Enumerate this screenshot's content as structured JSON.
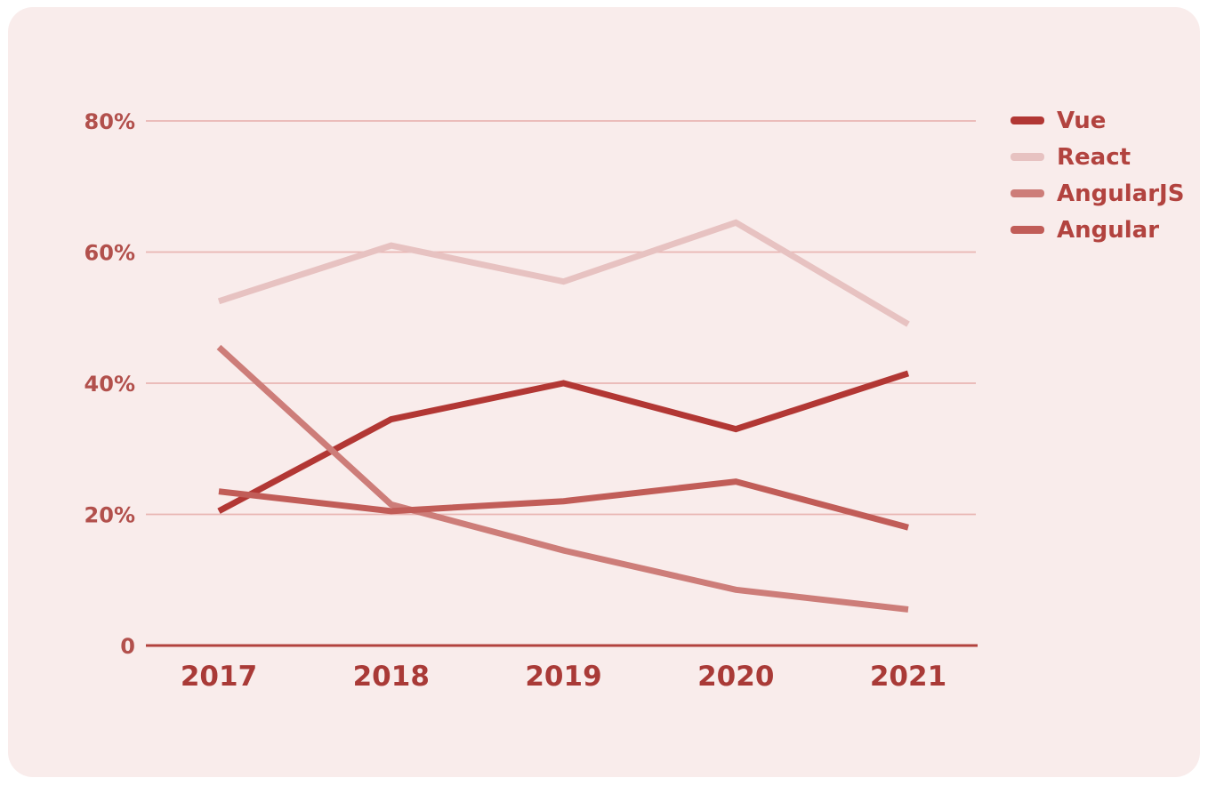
{
  "card": {
    "background": "#f9eceb"
  },
  "chart_data": {
    "type": "line",
    "title": "",
    "xlabel": "",
    "ylabel": "",
    "units": "percent",
    "grid": true,
    "legend_position": "top-right",
    "ylim": [
      0,
      80
    ],
    "x_labels": [
      "2017",
      "2018",
      "2019",
      "2020",
      "2021"
    ],
    "y_ticks": [
      {
        "value": 80,
        "label": "80%"
      },
      {
        "value": 60,
        "label": "60%"
      },
      {
        "value": 40,
        "label": "40%"
      },
      {
        "value": 20,
        "label": "20%"
      },
      {
        "value": 0,
        "label": "0"
      }
    ],
    "series": [
      {
        "name": "Vue",
        "color": "#b23734",
        "values": [
          20.5,
          34.5,
          40.0,
          33.0,
          41.5
        ]
      },
      {
        "name": "React",
        "color": "#e7c2c1",
        "values": [
          52.5,
          61.0,
          55.5,
          64.5,
          49.0
        ]
      },
      {
        "name": "AngularJS",
        "color": "#cd7d79",
        "values": [
          45.5,
          21.5,
          14.5,
          8.5,
          5.5
        ]
      },
      {
        "name": "Angular",
        "color": "#c15d58",
        "values": [
          23.5,
          20.5,
          22.0,
          25.0,
          18.0
        ]
      }
    ],
    "colors": {
      "axis_line": "#b2423e",
      "grid_line": "#e9b6b3",
      "y_tick_label": "#b2504c",
      "x_tick_label": "#a93a37",
      "legend_text": "#b2433f"
    }
  }
}
